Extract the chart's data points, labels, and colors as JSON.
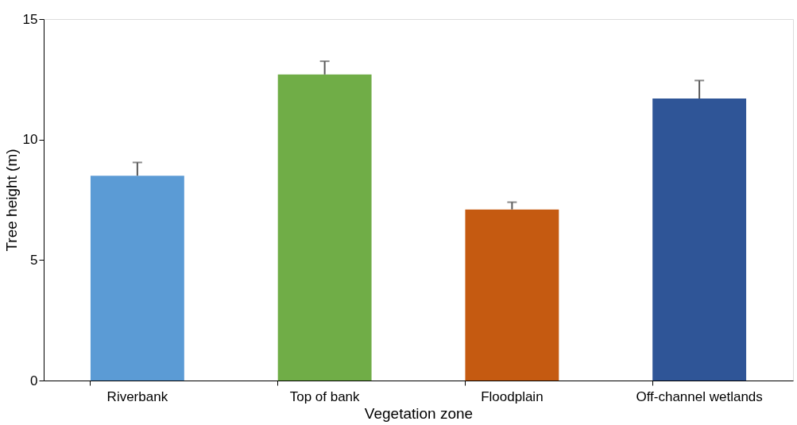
{
  "chart_data": {
    "type": "bar",
    "xlabel": "Vegetation zone",
    "ylabel": "Tree height (m)",
    "categories": [
      "Riverbank",
      "Top of bank",
      "Floodplain",
      "Off-channel wetlands"
    ],
    "values": [
      8.5,
      12.7,
      7.1,
      11.7
    ],
    "colors": [
      "#5b9bd5",
      "#70ad47",
      "#c55a11",
      "#2f5597"
    ],
    "errors": [
      [
        8.5,
        9.05
      ],
      [
        12.7,
        13.25
      ],
      [
        7.1,
        7.4
      ],
      [
        11.7,
        12.45
      ]
    ],
    "ylim": [
      0,
      15
    ],
    "yticks": [
      0,
      5,
      10,
      15
    ],
    "grid": false
  }
}
